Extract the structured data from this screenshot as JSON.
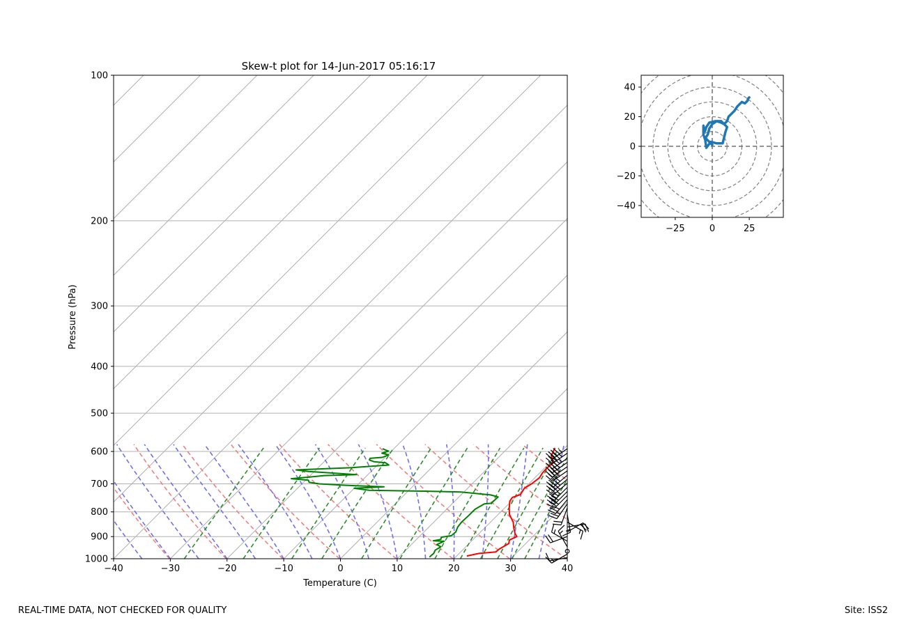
{
  "footer": {
    "disclaimer": "REAL-TIME DATA, NOT CHECKED FOR QUALITY",
    "site": "Site: ISS2"
  },
  "chart_data": [
    {
      "type": "line",
      "subtype": "skew-t log-p",
      "title": "Skew-t plot for 14-Jun-2017 05:16:17",
      "xlabel": "Temperature (C)",
      "ylabel": "Pressure (hPa)",
      "xlim": [
        -40,
        40
      ],
      "ylim": [
        1000,
        100
      ],
      "y_scale": "log",
      "xticks": [
        "−40",
        "−30",
        "−20",
        "−10",
        "0",
        "10",
        "20",
        "30",
        "40"
      ],
      "yticks": [
        "100",
        "200",
        "300",
        "400",
        "500",
        "600",
        "700",
        "800",
        "900",
        "1000"
      ],
      "reference_lines": {
        "isotherms_color": "#b0b0b0",
        "dry_adiabats_color": "#f08080",
        "moist_adiabats_color": "#7070ee",
        "mixing_ratio_color": "#2e8b2e"
      },
      "series": [
        {
          "color": "#ff0000",
          "points": [
            [
              21.8,
              987
            ],
            [
              22.8,
              980
            ],
            [
              23.5,
              975
            ],
            [
              24.8,
              972
            ],
            [
              26.2,
              968
            ],
            [
              26.3,
              955
            ],
            [
              27.0,
              930
            ],
            [
              26.5,
              915
            ],
            [
              27.2,
              900
            ],
            [
              26.4,
              888
            ],
            [
              25.2,
              865
            ],
            [
              24.0,
              840
            ],
            [
              22.0,
              810
            ],
            [
              20.8,
              785
            ],
            [
              19.7,
              760
            ],
            [
              19.5,
              747
            ],
            [
              20.4,
              737
            ],
            [
              20.2,
              725
            ],
            [
              20.0,
              715
            ],
            [
              20.5,
              700
            ],
            [
              20.8,
              680
            ],
            [
              20.5,
              665
            ],
            [
              20.4,
              650
            ],
            [
              20.6,
              635
            ],
            [
              20.0,
              625
            ],
            [
              19.0,
              612
            ],
            [
              18.6,
              600
            ],
            [
              18.3,
              590
            ]
          ]
        },
        {
          "color": "#008000",
          "points": [
            [
              15.4,
              992
            ],
            [
              15.5,
              975
            ],
            [
              15.2,
              960
            ],
            [
              15.6,
              945
            ],
            [
              14.5,
              935
            ],
            [
              15.2,
              920
            ],
            [
              13.2,
              918
            ],
            [
              14.3,
              912
            ],
            [
              14.0,
              903
            ],
            [
              15.5,
              896
            ],
            [
              15.6,
              880
            ],
            [
              15.1,
              860
            ],
            [
              14.9,
              840
            ],
            [
              15.0,
              815
            ],
            [
              15.0,
              790
            ],
            [
              15.7,
              770
            ],
            [
              16.8,
              768
            ],
            [
              16.9,
              745
            ],
            [
              15.2,
              738
            ],
            [
              9.5,
              728
            ],
            [
              3.5,
              725
            ],
            [
              -7.0,
              722
            ],
            [
              -10.0,
              715
            ],
            [
              -5.0,
              710
            ],
            [
              -12.0,
              705
            ],
            [
              -17.0,
              700
            ],
            [
              -19.0,
              695
            ],
            [
              -19.5,
              688
            ],
            [
              -22.8,
              683
            ],
            [
              -20.0,
              678
            ],
            [
              -17.5,
              673
            ],
            [
              -12.0,
              670
            ],
            [
              -16.5,
              665
            ],
            [
              -21.0,
              660
            ],
            [
              -23.5,
              655
            ],
            [
              -14.0,
              648
            ],
            [
              -8.0,
              640
            ],
            [
              -9.0,
              633
            ],
            [
              -11.2,
              630
            ],
            [
              -12.3,
              625
            ],
            [
              -12.5,
              620
            ],
            [
              -10.5,
              617
            ],
            [
              -9.8,
              610
            ],
            [
              -11.3,
              605
            ],
            [
              -10.5,
              599
            ],
            [
              -11.0,
              597
            ],
            [
              -12.0,
              592
            ]
          ]
        }
      ],
      "wind_barbs": [
        {
          "p": 592,
          "spd": 45,
          "dir": 235
        },
        {
          "p": 605,
          "spd": 45,
          "dir": 235
        },
        {
          "p": 620,
          "spd": 45,
          "dir": 235
        },
        {
          "p": 632,
          "spd": 40,
          "dir": 235
        },
        {
          "p": 645,
          "spd": 40,
          "dir": 235
        },
        {
          "p": 658,
          "spd": 40,
          "dir": 235
        },
        {
          "p": 672,
          "spd": 40,
          "dir": 230
        },
        {
          "p": 685,
          "spd": 35,
          "dir": 230
        },
        {
          "p": 698,
          "spd": 35,
          "dir": 230
        },
        {
          "p": 712,
          "spd": 35,
          "dir": 225
        },
        {
          "p": 726,
          "spd": 30,
          "dir": 225
        },
        {
          "p": 740,
          "spd": 30,
          "dir": 225
        },
        {
          "p": 755,
          "spd": 30,
          "dir": 220
        },
        {
          "p": 770,
          "spd": 25,
          "dir": 215
        },
        {
          "p": 785,
          "spd": 20,
          "dir": 200
        },
        {
          "p": 810,
          "spd": 15,
          "dir": 170
        },
        {
          "p": 840,
          "spd": 15,
          "dir": 120
        },
        {
          "p": 860,
          "spd": 20,
          "dir": 80
        },
        {
          "p": 880,
          "spd": 20,
          "dir": 60
        },
        {
          "p": 900,
          "spd": 20,
          "dir": 250
        },
        {
          "p": 920,
          "spd": 15,
          "dir": 300
        },
        {
          "p": 945,
          "spd": 15,
          "dir": 330
        },
        {
          "p": 965,
          "spd": 0,
          "dir": 0
        },
        {
          "p": 978,
          "spd": 15,
          "dir": 240
        },
        {
          "p": 995,
          "spd": 10,
          "dir": 260
        }
      ]
    },
    {
      "type": "line",
      "subtype": "hodograph",
      "xlim": [
        -48,
        48
      ],
      "ylim": [
        -48,
        48
      ],
      "xticks": [
        "−25",
        "0",
        "25"
      ],
      "yticks": [
        "40",
        "20",
        "0",
        "−20",
        "−40"
      ],
      "rings": [
        10,
        20,
        30,
        40,
        50,
        60
      ],
      "color": "#1f77b4",
      "points": [
        [
          0,
          1
        ],
        [
          -3,
          4
        ],
        [
          -5,
          6
        ],
        [
          -4,
          -1
        ],
        [
          -1,
          3
        ],
        [
          3,
          2
        ],
        [
          7,
          2
        ],
        [
          9,
          10
        ],
        [
          10,
          13
        ],
        [
          6,
          17
        ],
        [
          2,
          17
        ],
        [
          -2,
          16
        ],
        [
          -4,
          13
        ],
        [
          -5,
          10
        ],
        [
          -6,
          14
        ],
        [
          -6,
          8
        ],
        [
          -5,
          5
        ],
        [
          -3,
          8
        ],
        [
          -2,
          12
        ],
        [
          0,
          15
        ],
        [
          3,
          17
        ],
        [
          6,
          16
        ],
        [
          8,
          15
        ],
        [
          10,
          17
        ],
        [
          11,
          20
        ],
        [
          13,
          22
        ],
        [
          15,
          24
        ],
        [
          17,
          27
        ],
        [
          19,
          29
        ],
        [
          20,
          30
        ],
        [
          22,
          29
        ],
        [
          24,
          31
        ],
        [
          24,
          32
        ],
        [
          25,
          33
        ]
      ]
    }
  ]
}
